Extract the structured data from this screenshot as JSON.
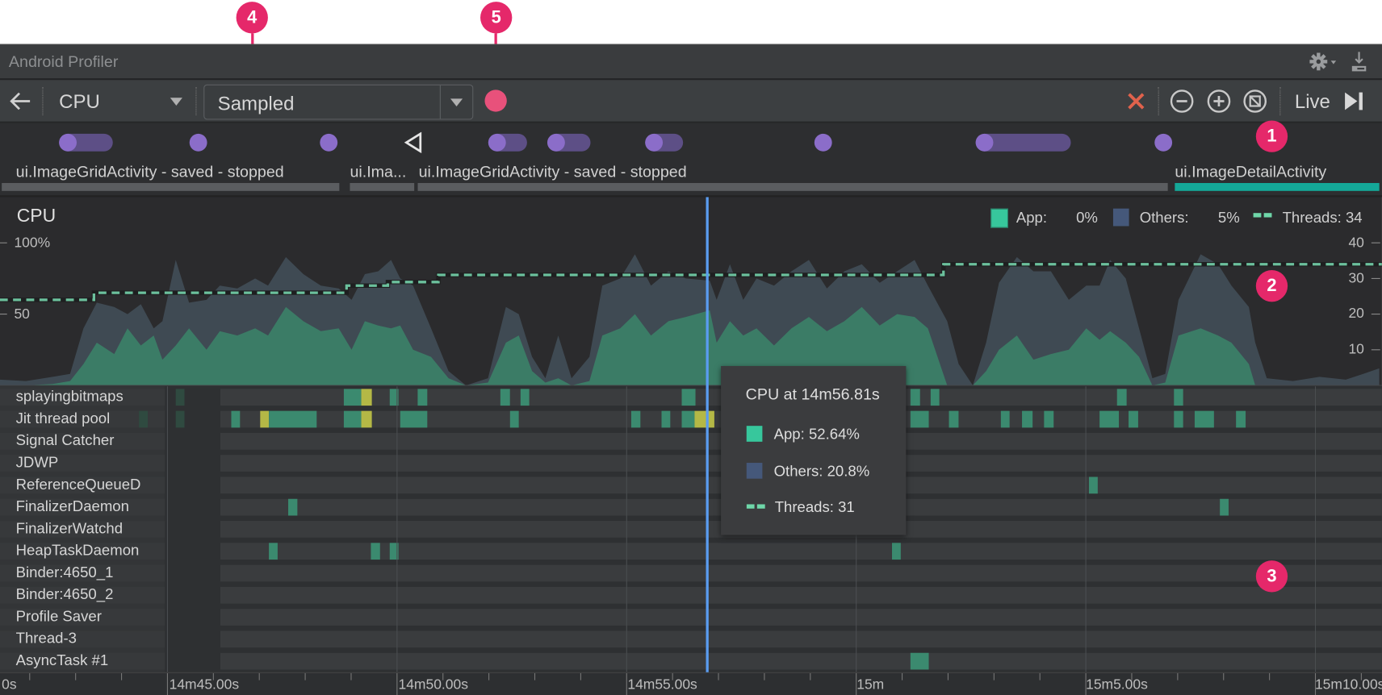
{
  "window": {
    "title": "Android Profiler"
  },
  "toolbar": {
    "profiler_select": "CPU",
    "recording_config": "Sampled",
    "live_label": "Live",
    "icons": [
      "back-arrow-icon",
      "chevron-down-icon",
      "record-icon",
      "close-icon",
      "zoom-out-icon",
      "zoom-in-icon",
      "reset-zoom-icon",
      "jump-to-live-icon",
      "settings-icon",
      "download-icon"
    ]
  },
  "callouts": [
    "1",
    "2",
    "3",
    "4",
    "5"
  ],
  "activities": [
    {
      "label": "ui.ImageGridActivity - saved - stopped",
      "current": false
    },
    {
      "label": "ui.Ima...",
      "current": false
    },
    {
      "label": "ui.ImageGridActivity - saved - stopped",
      "current": false
    },
    {
      "label": "ui.ImageDetailActivity",
      "current": true
    }
  ],
  "chart": {
    "title": "CPU",
    "left_ticks": [
      "100%",
      "50"
    ],
    "right_ticks": [
      "40",
      "30",
      "20",
      "10"
    ],
    "legend": {
      "app_label": "App:",
      "app_value": "0%",
      "others_label": "Others:",
      "others_value": "5%",
      "threads_label": "Threads: 34"
    },
    "colors": {
      "app": "#3b7c66",
      "others": "#3f4a53",
      "threads": "#6cc19d",
      "cursor": "#5a9cf0"
    }
  },
  "tooltip": {
    "title": "CPU at 14m56.81s",
    "app": "App: 52.64%",
    "others": "Others: 20.8%",
    "threads": "Threads: 31"
  },
  "chart_data": {
    "type": "area",
    "x_unit": "seconds",
    "y_left_range": [
      0,
      100
    ],
    "y_right_range": [
      0,
      40
    ],
    "cursor_time_s": 896.81,
    "samples": {
      "time_s": [
        881.35,
        881.92,
        882.5,
        882.88,
        883.17,
        883.46,
        883.84,
        884.13,
        884.42,
        884.7,
        884.89,
        885.18,
        885.47,
        885.85,
        886.14,
        886.52,
        886.91,
        887.19,
        887.58,
        887.96,
        888.34,
        888.73,
        889.01,
        889.3,
        889.59,
        889.87,
        890.07,
        890.35,
        890.74,
        891.12,
        891.5,
        891.98,
        892.37,
        892.65,
        892.94,
        893.23,
        893.51,
        893.8,
        894.19,
        894.47,
        894.86,
        895.18,
        895.53,
        895.91,
        896.29,
        896.81,
        896.96,
        897.25,
        897.54,
        897.83,
        898.21,
        898.59,
        898.97,
        899.36,
        899.74,
        900.12,
        900.51,
        900.89,
        901.27,
        901.56,
        901.98,
        902.23,
        902.54,
        902.83,
        903.11,
        903.5,
        903.86,
        904.24,
        904.63,
        905.01,
        905.3,
        905.53,
        905.87,
        906.16,
        906.45,
        906.73,
        907.02,
        907.5,
        907.88,
        908.17,
        908.55,
        908.69,
        908.94,
        909.51,
        910.09,
        910.66,
        911.04,
        911.39
      ],
      "app_pct": [
        0,
        0,
        1,
        3,
        15,
        30,
        22,
        40,
        28,
        35,
        18,
        28,
        40,
        25,
        38,
        35,
        40,
        35,
        55,
        45,
        38,
        40,
        25,
        45,
        42,
        40,
        42,
        25,
        20,
        5,
        0,
        2,
        30,
        35,
        10,
        2,
        5,
        0,
        3,
        35,
        40,
        50,
        35,
        45,
        48,
        52.64,
        30,
        45,
        35,
        40,
        28,
        40,
        48,
        38,
        45,
        55,
        42,
        50,
        48,
        40,
        0,
        0,
        0,
        10,
        25,
        35,
        18,
        22,
        25,
        40,
        32,
        38,
        30,
        20,
        0,
        2,
        35,
        40,
        35,
        30,
        15,
        0,
        0,
        0,
        0,
        0,
        0,
        0
      ],
      "total_pct": [
        4,
        3,
        6,
        8,
        40,
        58,
        55,
        50,
        57,
        40,
        45,
        88,
        58,
        60,
        70,
        68,
        75,
        70,
        90,
        78,
        70,
        68,
        60,
        78,
        80,
        88,
        75,
        70,
        40,
        10,
        0,
        5,
        55,
        50,
        20,
        5,
        35,
        5,
        20,
        70,
        75,
        92,
        70,
        80,
        75,
        73.44,
        60,
        85,
        60,
        75,
        70,
        80,
        88,
        68,
        80,
        85,
        72,
        80,
        88,
        70,
        45,
        15,
        0,
        30,
        72,
        90,
        80,
        80,
        60,
        70,
        70,
        88,
        75,
        40,
        5,
        8,
        60,
        92,
        85,
        70,
        55,
        30,
        5,
        3,
        6,
        4,
        8,
        12
      ]
    },
    "threads_count": [
      [
        881.35,
        24
      ],
      [
        883.4,
        26
      ],
      [
        888.9,
        28
      ],
      [
        889.8,
        29
      ],
      [
        890.9,
        31
      ],
      [
        901.9,
        34
      ]
    ],
    "x_ticks": [
      "0s",
      "14m45.00s",
      "14m50.00s",
      "14m55.00s",
      "15m",
      "15m5.00s",
      "15m10.00s"
    ]
  },
  "threads": [
    {
      "name": "splayingbitmaps",
      "segments": [
        [
          885.18,
          885.37,
          "idle"
        ],
        [
          888.84,
          889.22,
          "running"
        ],
        [
          889.22,
          889.45,
          "waiting"
        ],
        [
          889.84,
          890.03,
          "running"
        ],
        [
          890.45,
          890.66,
          "running"
        ],
        [
          892.25,
          892.46,
          "running"
        ],
        [
          892.69,
          892.88,
          "running"
        ],
        [
          896.2,
          896.5,
          "running"
        ],
        [
          901.18,
          901.39,
          "running"
        ],
        [
          901.62,
          901.81,
          "running"
        ],
        [
          905.68,
          905.89,
          "running"
        ],
        [
          906.92,
          907.12,
          "running"
        ]
      ]
    },
    {
      "name": "Jit thread pool",
      "segments": [
        [
          884.38,
          884.57,
          "idle"
        ],
        [
          885.18,
          885.37,
          "idle"
        ],
        [
          886.39,
          886.58,
          "running"
        ],
        [
          887.02,
          887.21,
          "waiting"
        ],
        [
          887.21,
          888.25,
          "running"
        ],
        [
          888.84,
          889.22,
          "running"
        ],
        [
          889.22,
          889.45,
          "waiting"
        ],
        [
          890.07,
          890.66,
          "running"
        ],
        [
          892.46,
          892.65,
          "running"
        ],
        [
          895.1,
          895.3,
          "running"
        ],
        [
          895.76,
          895.95,
          "running"
        ],
        [
          896.2,
          896.48,
          "running"
        ],
        [
          896.48,
          896.91,
          "waiting"
        ],
        [
          901.18,
          901.58,
          "running"
        ],
        [
          902.02,
          902.23,
          "running"
        ],
        [
          903.15,
          903.34,
          "running"
        ],
        [
          903.61,
          903.84,
          "running"
        ],
        [
          904.09,
          904.3,
          "running"
        ],
        [
          905.3,
          905.72,
          "running"
        ],
        [
          905.93,
          906.14,
          "running"
        ],
        [
          906.92,
          907.12,
          "running"
        ],
        [
          907.37,
          907.79,
          "running"
        ],
        [
          908.27,
          908.48,
          "running"
        ]
      ]
    },
    {
      "name": "Signal Catcher",
      "segments": []
    },
    {
      "name": "JDWP",
      "segments": []
    },
    {
      "name": "ReferenceQueueD",
      "segments": [
        [
          905.07,
          905.26,
          "running"
        ]
      ]
    },
    {
      "name": "FinalizerDaemon",
      "segments": [
        [
          887.63,
          887.83,
          "running"
        ],
        [
          907.92,
          908.11,
          "running"
        ]
      ]
    },
    {
      "name": "FinalizerWatchd",
      "segments": []
    },
    {
      "name": "HeapTaskDaemon",
      "segments": [
        [
          887.21,
          887.4,
          "running"
        ],
        [
          889.43,
          889.63,
          "running"
        ],
        [
          889.84,
          890.03,
          "running"
        ],
        [
          900.78,
          900.97,
          "running"
        ]
      ]
    },
    {
      "name": "Binder:4650_1",
      "segments": []
    },
    {
      "name": "Binder:4650_2",
      "segments": []
    },
    {
      "name": "Profile Saver",
      "segments": []
    },
    {
      "name": "Thread-3",
      "segments": []
    },
    {
      "name": "AsyncTask #1",
      "segments": [
        [
          901.18,
          901.58,
          "running"
        ]
      ]
    }
  ],
  "thread_state_colors": {
    "running": "#3b8a6f",
    "waiting": "#b4b846",
    "idle": "#2f4a40"
  }
}
